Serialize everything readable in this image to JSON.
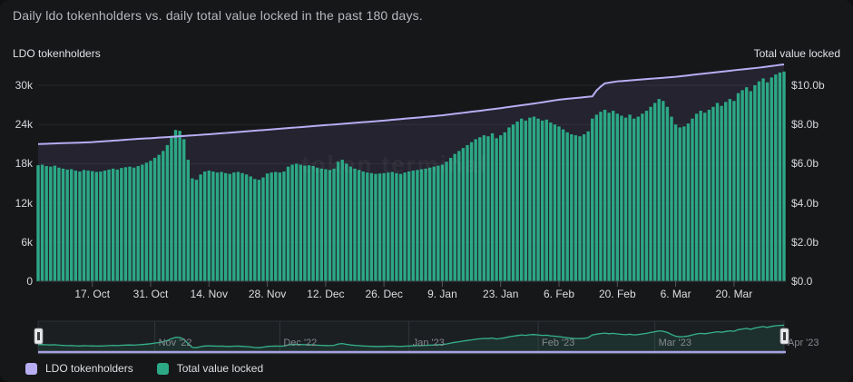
{
  "header": {
    "title": "Daily ldo tokenholders vs. daily total value locked in the past 180 days."
  },
  "axes": {
    "left": {
      "title": "LDO tokenholders",
      "tick_labels": [
        "30k",
        "24k",
        "18k",
        "12k",
        "6k",
        "0"
      ],
      "tick_values": [
        30,
        24,
        18,
        12,
        6,
        0
      ]
    },
    "right": {
      "title": "Total value locked",
      "tick_labels": [
        "$10.0b",
        "$8.0b",
        "$6.0b",
        "$4.0b",
        "$2.0b",
        "$0.0"
      ],
      "tick_values": [
        10,
        8,
        6,
        4,
        2,
        0
      ]
    },
    "x": {
      "tick_labels": [
        "17. Oct",
        "31. Oct",
        "14. Nov",
        "28. Nov",
        "12. Dec",
        "26. Dec",
        "9. Jan",
        "23. Jan",
        "6. Feb",
        "20. Feb",
        "6. Mar",
        "20. Mar"
      ],
      "tick_day_index": [
        13,
        27,
        41,
        55,
        69,
        83,
        97,
        111,
        125,
        139,
        153,
        167
      ]
    }
  },
  "navigator": {
    "month_labels": [
      "Nov '22",
      "Dec '22",
      "Jan '23",
      "Feb '23",
      "Mar '23",
      "Apr '23"
    ],
    "month_day_index": [
      28,
      58,
      89,
      120,
      148,
      179
    ]
  },
  "legend": [
    {
      "label": "LDO tokenholders",
      "color": "#b7adf3"
    },
    {
      "label": "Total value locked",
      "color": "#2ca886"
    }
  ],
  "watermark": "token terminal",
  "colors": {
    "background": "#161719",
    "bar": "#2ca886",
    "line": "#b7adf3",
    "line_area_fill": "rgba(125,115,185,0.14)",
    "grid": "#26272b",
    "baseline": "#3a3b40",
    "x_tick_mark": "#56575b",
    "nav_background": "#1c1f22",
    "nav_border": "#2c2f34",
    "nav_grid": "#323539",
    "nav_line": "#35b28c",
    "nav_area_fill": "rgba(47,169,130,0.12)",
    "nav_range_line": "#a9a1e2",
    "handle_fill": "#e9eaec",
    "handle_slot": "#3a3a3a"
  },
  "chart_data": {
    "type": "bar",
    "subtype": "dual-axis bar + line, 180 daily points",
    "title": "Daily ldo tokenholders vs. daily total value locked in the past 180 days.",
    "x_count": 180,
    "left_axis_range_k": [
      0,
      30
    ],
    "right_axis_range_b": [
      0,
      10
    ],
    "grid": "horizontal",
    "legend_position": "bottom-left",
    "series": [
      {
        "name": "LDO tokenholders",
        "type": "line",
        "axis": "left",
        "unit": "thousand holders",
        "values": [
          21.0,
          21.02,
          21.05,
          21.07,
          21.1,
          21.12,
          21.14,
          21.16,
          21.18,
          21.2,
          21.22,
          21.25,
          21.27,
          21.3,
          21.35,
          21.39,
          21.44,
          21.48,
          21.53,
          21.57,
          21.62,
          21.66,
          21.71,
          21.75,
          21.8,
          21.84,
          21.87,
          21.9,
          21.94,
          21.99,
          22.03,
          22.07,
          22.12,
          22.16,
          22.2,
          22.24,
          22.29,
          22.33,
          22.37,
          22.42,
          22.46,
          22.5,
          22.55,
          22.6,
          22.65,
          22.7,
          22.75,
          22.8,
          22.85,
          22.9,
          22.95,
          23.0,
          23.05,
          23.1,
          23.15,
          23.2,
          23.25,
          23.3,
          23.35,
          23.4,
          23.45,
          23.5,
          23.55,
          23.6,
          23.65,
          23.7,
          23.75,
          23.8,
          23.85,
          23.9,
          23.95,
          24.0,
          24.05,
          24.1,
          24.15,
          24.2,
          24.25,
          24.3,
          24.35,
          24.4,
          24.45,
          24.5,
          24.55,
          24.6,
          24.66,
          24.72,
          24.77,
          24.83,
          24.89,
          24.94,
          25.0,
          25.06,
          25.11,
          25.17,
          25.23,
          25.28,
          25.34,
          25.4,
          25.48,
          25.56,
          25.64,
          25.71,
          25.79,
          25.87,
          25.95,
          26.03,
          26.1,
          26.18,
          26.26,
          26.34,
          26.42,
          26.5,
          26.59,
          26.68,
          26.77,
          26.86,
          26.94,
          27.03,
          27.12,
          27.21,
          27.3,
          27.4,
          27.5,
          27.6,
          27.7,
          27.8,
          27.86,
          27.93,
          27.99,
          28.05,
          28.11,
          28.18,
          28.24,
          28.3,
          29.2,
          29.8,
          30.3,
          30.4,
          30.5,
          30.6,
          30.65,
          30.7,
          30.75,
          30.8,
          30.85,
          30.9,
          30.95,
          31.0,
          31.05,
          31.1,
          31.15,
          31.2,
          31.25,
          31.3,
          31.37,
          31.44,
          31.51,
          31.59,
          31.66,
          31.73,
          31.8,
          31.87,
          31.94,
          32.01,
          32.09,
          32.16,
          32.23,
          32.3,
          32.37,
          32.43,
          32.5,
          32.57,
          32.63,
          32.7,
          32.78,
          32.87,
          32.95,
          33.03,
          33.12,
          33.2
        ]
      },
      {
        "name": "Total value locked",
        "type": "bar",
        "axis": "right",
        "unit": "$ billions",
        "values": [
          5.92,
          5.95,
          5.88,
          5.85,
          5.9,
          5.8,
          5.75,
          5.7,
          5.72,
          5.65,
          5.6,
          5.68,
          5.65,
          5.62,
          5.58,
          5.6,
          5.65,
          5.7,
          5.75,
          5.7,
          5.78,
          5.82,
          5.85,
          5.8,
          5.88,
          5.95,
          6.05,
          6.15,
          6.3,
          6.45,
          6.65,
          6.95,
          7.4,
          7.72,
          7.68,
          7.25,
          6.2,
          5.25,
          5.18,
          5.45,
          5.6,
          5.65,
          5.6,
          5.55,
          5.58,
          5.52,
          5.48,
          5.55,
          5.58,
          5.52,
          5.45,
          5.35,
          5.22,
          5.18,
          5.3,
          5.5,
          5.55,
          5.58,
          5.55,
          5.6,
          5.85,
          5.95,
          6.0,
          5.95,
          5.9,
          5.92,
          5.88,
          5.8,
          5.75,
          5.72,
          5.68,
          5.75,
          6.1,
          6.2,
          6.0,
          5.85,
          5.75,
          5.68,
          5.6,
          5.55,
          5.52,
          5.48,
          5.5,
          5.52,
          5.55,
          5.58,
          5.52,
          5.48,
          5.55,
          5.6,
          5.65,
          5.68,
          5.72,
          5.75,
          5.8,
          5.85,
          5.9,
          5.95,
          6.1,
          6.3,
          6.5,
          6.65,
          6.8,
          6.95,
          7.1,
          7.25,
          7.35,
          7.45,
          7.4,
          7.55,
          7.3,
          7.45,
          7.6,
          7.85,
          8.0,
          8.15,
          8.3,
          8.2,
          8.35,
          8.4,
          8.3,
          8.2,
          8.25,
          8.1,
          8.0,
          7.9,
          7.75,
          7.6,
          7.5,
          7.45,
          7.4,
          7.5,
          7.65,
          8.3,
          8.5,
          8.65,
          8.75,
          8.6,
          8.7,
          8.55,
          8.45,
          8.35,
          8.5,
          8.3,
          8.4,
          8.55,
          8.7,
          8.9,
          9.1,
          9.3,
          9.2,
          8.9,
          8.4,
          8.0,
          7.85,
          7.9,
          8.05,
          8.3,
          8.55,
          8.7,
          8.6,
          8.75,
          8.9,
          9.1,
          8.95,
          9.15,
          9.3,
          9.2,
          9.6,
          9.75,
          9.9,
          9.7,
          10.0,
          10.2,
          10.35,
          10.15,
          10.4,
          10.55,
          10.65,
          10.7
        ]
      }
    ]
  }
}
